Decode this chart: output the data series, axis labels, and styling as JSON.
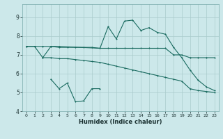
{
  "bg_color": "#cce8ea",
  "grid_color": "#aacccc",
  "line_color": "#1a6b60",
  "xlabel": "Humidex (Indice chaleur)",
  "xlim": [
    -0.5,
    23.5
  ],
  "ylim": [
    4.0,
    9.7
  ],
  "yticks": [
    4,
    5,
    6,
    7,
    8,
    9
  ],
  "xticks": [
    0,
    1,
    2,
    3,
    4,
    5,
    6,
    7,
    8,
    9,
    10,
    11,
    12,
    13,
    14,
    15,
    16,
    17,
    18,
    19,
    20,
    21,
    22,
    23
  ],
  "line1_x": [
    0,
    1,
    2,
    3,
    4,
    5,
    6,
    7,
    8,
    9,
    10,
    11,
    12,
    13,
    14,
    15,
    16,
    17,
    18,
    19,
    20,
    21,
    22,
    23
  ],
  "line1_y": [
    7.45,
    7.45,
    7.45,
    7.45,
    7.4,
    7.4,
    7.4,
    7.4,
    7.4,
    7.35,
    7.35,
    7.35,
    7.35,
    7.35,
    7.35,
    7.35,
    7.35,
    7.35,
    7.0,
    7.0,
    6.85,
    6.85,
    6.85,
    6.85
  ],
  "line2_x": [
    2,
    3,
    4,
    5,
    6,
    7,
    8,
    9,
    10,
    11,
    12,
    13,
    14,
    15,
    16,
    17,
    18,
    19,
    20,
    21,
    22,
    23
  ],
  "line2_y": [
    6.85,
    6.85,
    6.8,
    6.8,
    6.75,
    6.7,
    6.65,
    6.6,
    6.5,
    6.4,
    6.3,
    6.2,
    6.1,
    6.0,
    5.9,
    5.8,
    5.7,
    5.6,
    5.2,
    5.1,
    5.05,
    5.0
  ],
  "line3_x": [
    0,
    1,
    2,
    3,
    4,
    9,
    10,
    11,
    12,
    13,
    14,
    15,
    16,
    17,
    18,
    19,
    20,
    21,
    22,
    23
  ],
  "line3_y": [
    7.45,
    7.45,
    6.85,
    7.45,
    7.45,
    7.35,
    8.5,
    7.85,
    8.8,
    8.85,
    8.3,
    8.45,
    8.2,
    8.1,
    7.4,
    6.85,
    6.2,
    5.65,
    5.3,
    5.1
  ],
  "line4_x": [
    3,
    4,
    5,
    6,
    7,
    8,
    9
  ],
  "line4_y": [
    5.7,
    5.2,
    5.5,
    4.5,
    4.55,
    5.2,
    5.2
  ]
}
